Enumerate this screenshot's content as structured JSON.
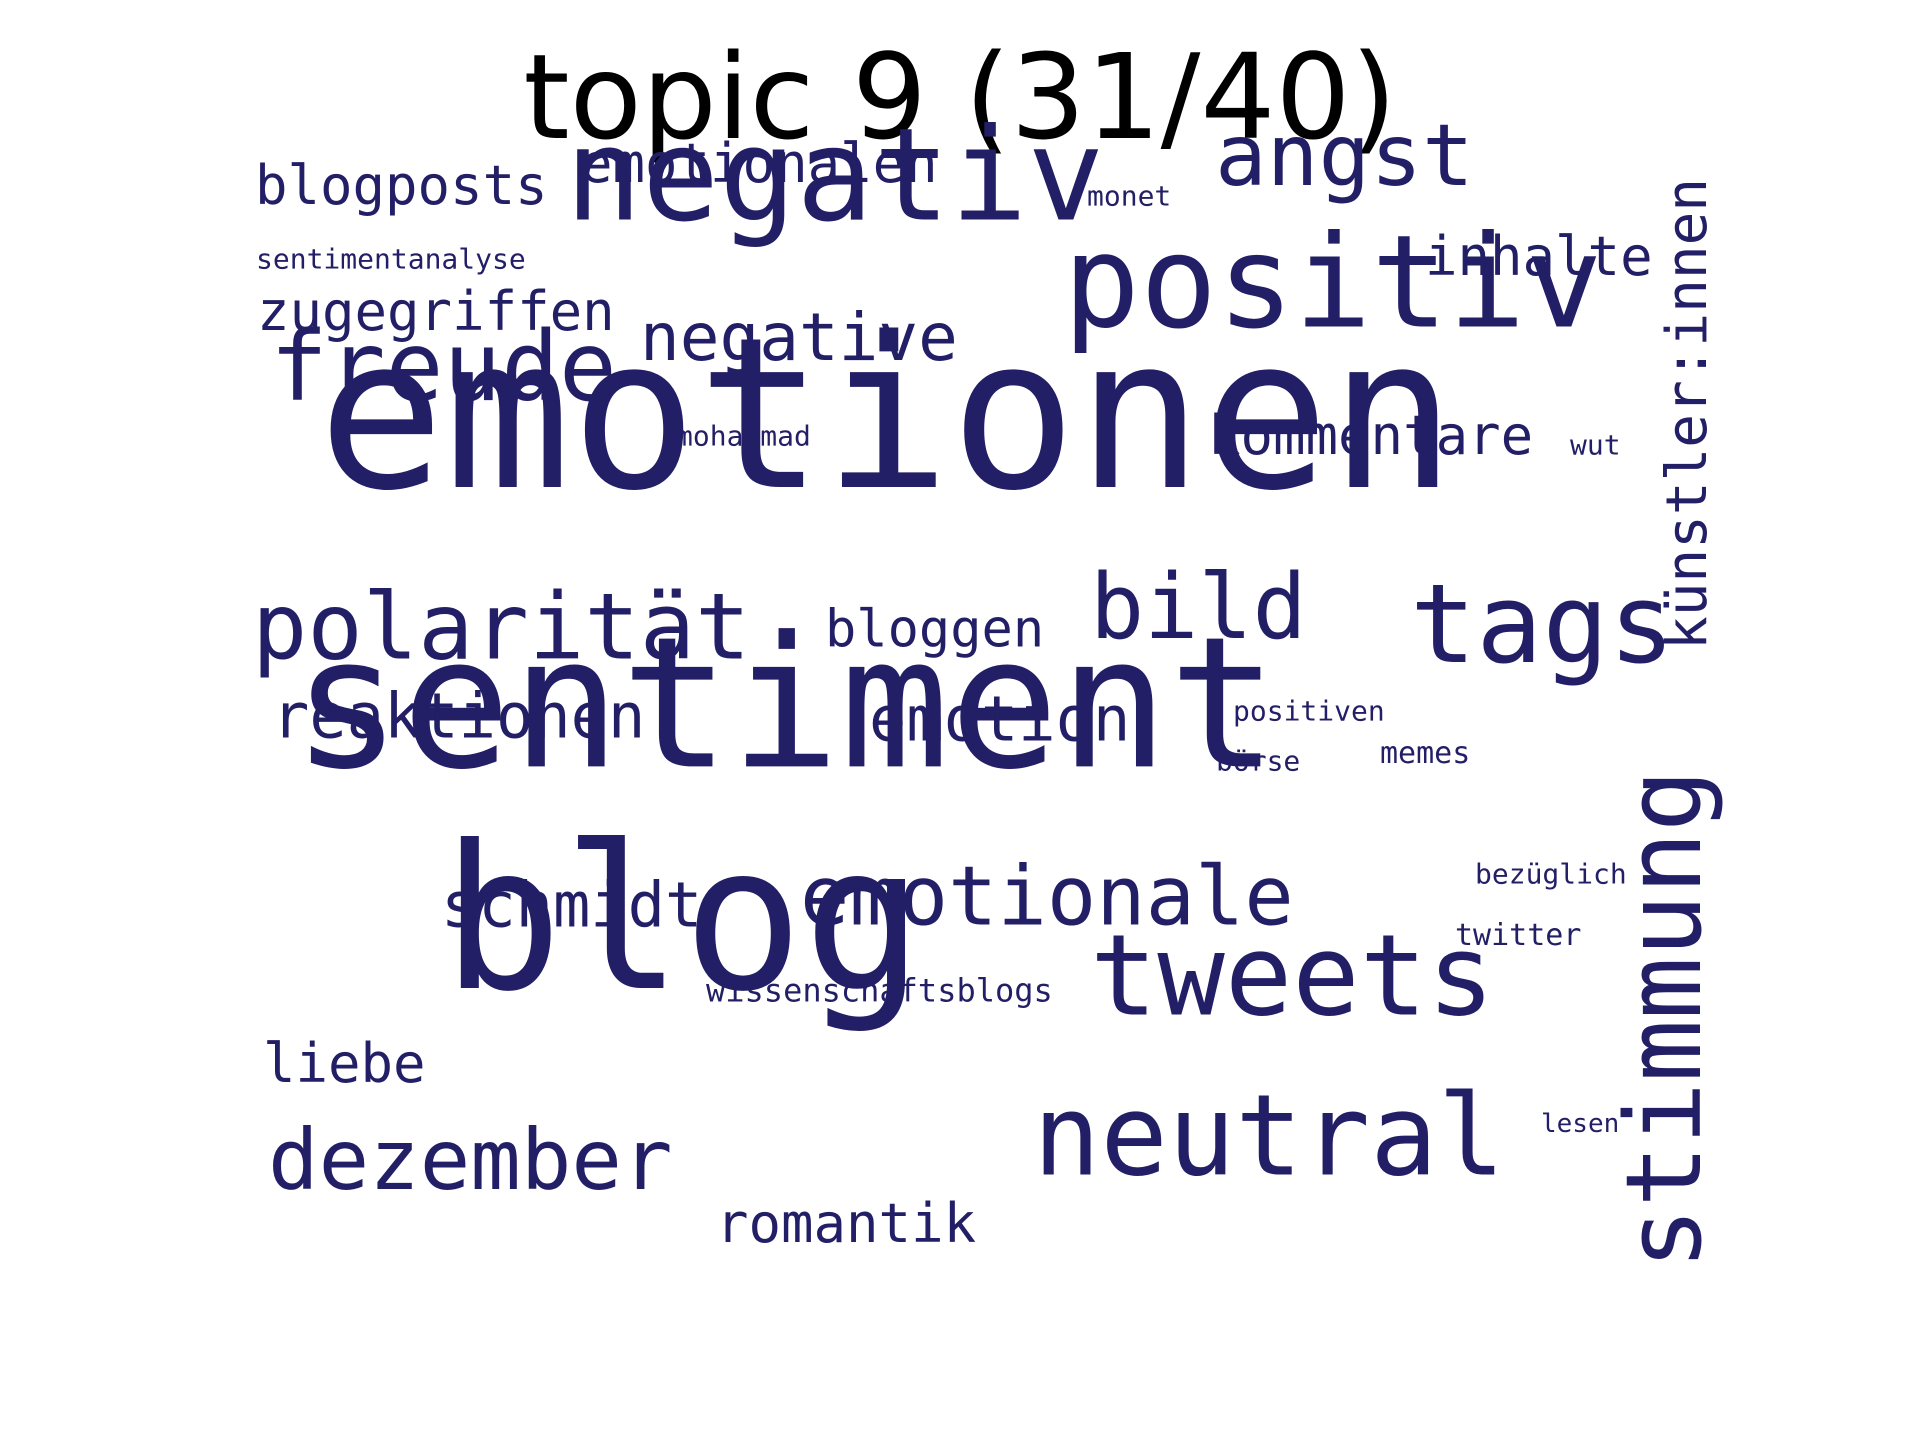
{
  "title": "topic 9 (31/40)",
  "color": "#231f66",
  "words": [
    {
      "text": "emotionen",
      "weight": 1.0
    },
    {
      "text": "sentiment",
      "weight": 0.86
    },
    {
      "text": "blog",
      "weight": 0.84
    },
    {
      "text": "negativ",
      "weight": 0.68
    },
    {
      "text": "positiv",
      "weight": 0.68
    },
    {
      "text": "tweets",
      "weight": 0.6
    },
    {
      "text": "neutral",
      "weight": 0.54
    },
    {
      "text": "tags",
      "weight": 0.5
    },
    {
      "text": "stimmung",
      "weight": 0.5
    },
    {
      "text": "bild",
      "weight": 0.48
    },
    {
      "text": "emotionale",
      "weight": 0.46
    },
    {
      "text": "freude",
      "weight": 0.46
    },
    {
      "text": "polarität",
      "weight": 0.46
    },
    {
      "text": "dezember",
      "weight": 0.46
    },
    {
      "text": "angst",
      "weight": 0.44
    },
    {
      "text": "negative",
      "weight": 0.36
    },
    {
      "text": "schmidt",
      "weight": 0.34
    },
    {
      "text": "künstler:innen",
      "weight": 0.34
    },
    {
      "text": "emotion",
      "weight": 0.34
    },
    {
      "text": "reaktionen",
      "weight": 0.32
    },
    {
      "text": "kommentare",
      "weight": 0.3
    },
    {
      "text": "blogposts",
      "weight": 0.3
    },
    {
      "text": "zugegriffen",
      "weight": 0.3
    },
    {
      "text": "emotionalen",
      "weight": 0.3
    },
    {
      "text": "romantik",
      "weight": 0.3
    },
    {
      "text": "bloggen",
      "weight": 0.3
    },
    {
      "text": "liebe",
      "weight": 0.3
    },
    {
      "text": "inhalte",
      "weight": 0.3
    },
    {
      "text": "wissenschaftsblogs",
      "weight": 0.18
    },
    {
      "text": "memes",
      "weight": 0.18
    },
    {
      "text": "twitter",
      "weight": 0.18
    },
    {
      "text": "positiven",
      "weight": 0.16
    },
    {
      "text": "sentimentanalyse",
      "weight": 0.16
    },
    {
      "text": "mohammad",
      "weight": 0.16
    },
    {
      "text": "börse",
      "weight": 0.16
    },
    {
      "text": "bezüglich",
      "weight": 0.16
    },
    {
      "text": "monet",
      "weight": 0.16
    },
    {
      "text": "wut",
      "weight": 0.16
    },
    {
      "text": "lesen",
      "weight": 0.16
    }
  ]
}
